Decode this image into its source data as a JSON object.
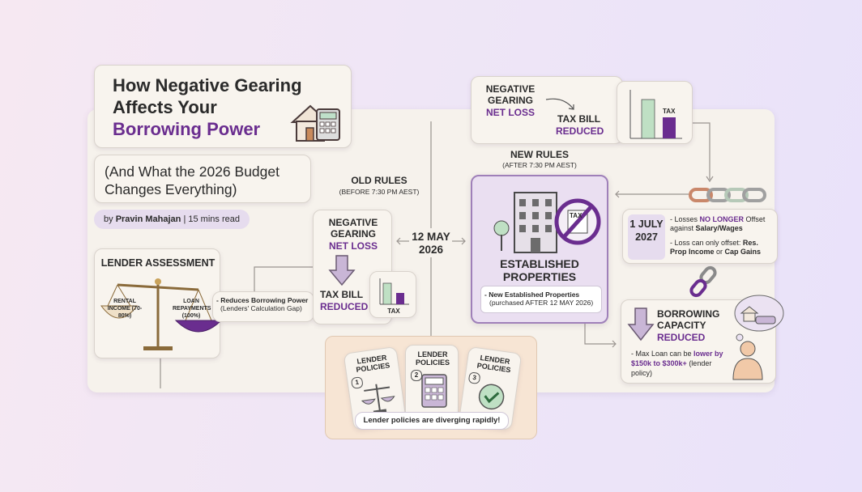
{
  "header": {
    "title_lines": [
      "How Negative Gearing",
      "Affects Your"
    ],
    "title_highlight": "Borrowing Power",
    "subtitle": "(And What the 2026 Budget Changes Everything)",
    "byline": {
      "prefix": "by",
      "author": "Pravin Mahajan",
      "meta": "| 15 mins read"
    }
  },
  "lender_assessment": {
    "title": "LENDER ASSESSMENT",
    "left_pan": "RENTAL INCOME (70-80%)",
    "right_pan": "LOAN REPAYMENTS (100%)",
    "note": "- Reduces Borrowing Power",
    "note_detail": "(Lenders' Calculation Gap)"
  },
  "old_rules": {
    "label": "OLD RULES",
    "sublabel": "(BEFORE 7:30 PM AEST)",
    "card": {
      "line1": "NEGATIVE GEARING",
      "line2": "NET LOSS",
      "line3": "TAX BILL",
      "line4": "REDUCED"
    },
    "chart_label": "TAX"
  },
  "date": "12 MAY 2026",
  "new_rules": {
    "label": "NEW RULES",
    "sublabel": "(AFTER 7:30 PM AEST)",
    "icon_label": "TAX",
    "title": "ESTABLISHED PROPERTIES",
    "note": "- New Established Properties",
    "note_detail": "(purchased AFTER 12 MAY 2026)"
  },
  "top_card": {
    "line1": "NEGATIVE GEARING",
    "line2": "NET LOSS",
    "line3": "TAX BILL",
    "line4": "REDUCED",
    "chart_label": "TAX"
  },
  "july": {
    "date": "1 JULY 2027",
    "point1": [
      "- Losses ",
      "NO LONGER",
      " Offset against ",
      "Salary/Wages"
    ],
    "point2": [
      "- Loss can only offset: ",
      "Res. Prop Income",
      " or ",
      "Cap Gains"
    ]
  },
  "borrowing": {
    "title": "BORROWING CAPACITY",
    "highlight": "REDUCED",
    "point": [
      "- Max Loan can be ",
      "lower by $150k to $300k+",
      " (lender policy)"
    ]
  },
  "lender_policies": {
    "cards": [
      {
        "title": "LENDER POLICIES",
        "number": "1"
      },
      {
        "title": "LENDER POLICIES",
        "number": "2"
      },
      {
        "title": "LENDER POLICIES",
        "number": "3"
      }
    ],
    "banner": "Lender policies are diverging rapidly!"
  }
}
